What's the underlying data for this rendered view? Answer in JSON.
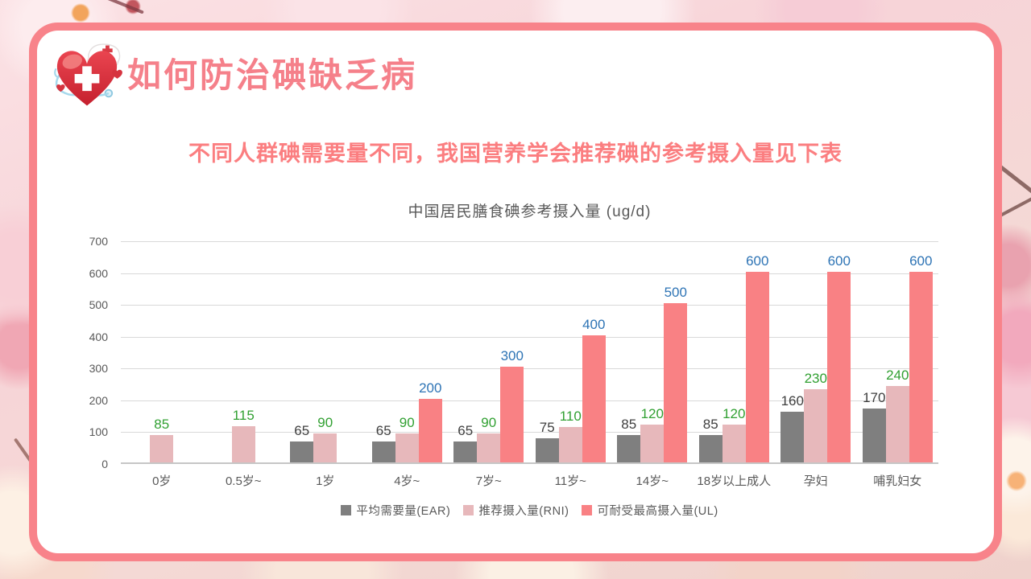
{
  "slide": {
    "title": "如何防治碘缺乏病",
    "subtitle": "不同人群碘需要量不同，我国营养学会推荐碘的参考摄入量见下表"
  },
  "chart_data": {
    "type": "bar",
    "title": "中国居民膳食碘参考摄入量 (ug/d)",
    "categories": [
      "0岁",
      "0.5岁~",
      "1岁",
      "4岁~",
      "7岁~",
      "11岁~",
      "14岁~",
      "18岁以上成人",
      "孕妇",
      "哺乳妇女"
    ],
    "series": [
      {
        "name": "平均需要量(EAR)",
        "color": "#7f7f7f",
        "label_color": "#3f3f3f",
        "values": [
          null,
          null,
          65,
          65,
          65,
          75,
          85,
          85,
          160,
          170
        ]
      },
      {
        "name": "推荐摄入量(RNI)",
        "color": "#e7b8bb",
        "label_color": "#31a032",
        "values": [
          85,
          115,
          90,
          90,
          90,
          110,
          120,
          120,
          230,
          240
        ]
      },
      {
        "name": "可耐受最高摄入量(UL)",
        "color": "#f98184",
        "label_color": "#2e74b5",
        "values": [
          null,
          null,
          null,
          200,
          300,
          400,
          500,
          600,
          600,
          600
        ]
      }
    ],
    "ylim": [
      0,
      700
    ],
    "yticks": [
      0,
      100,
      200,
      300,
      400,
      500,
      600,
      700
    ],
    "grid": true,
    "legend_position": "bottom",
    "xlabel": "",
    "ylabel": ""
  },
  "colors": {
    "frame": "#f8838a",
    "title_text": "#f5808a",
    "subtitle_text": "#fb7e80",
    "axis_text": "#595959",
    "gridline": "#d9d9d9"
  }
}
